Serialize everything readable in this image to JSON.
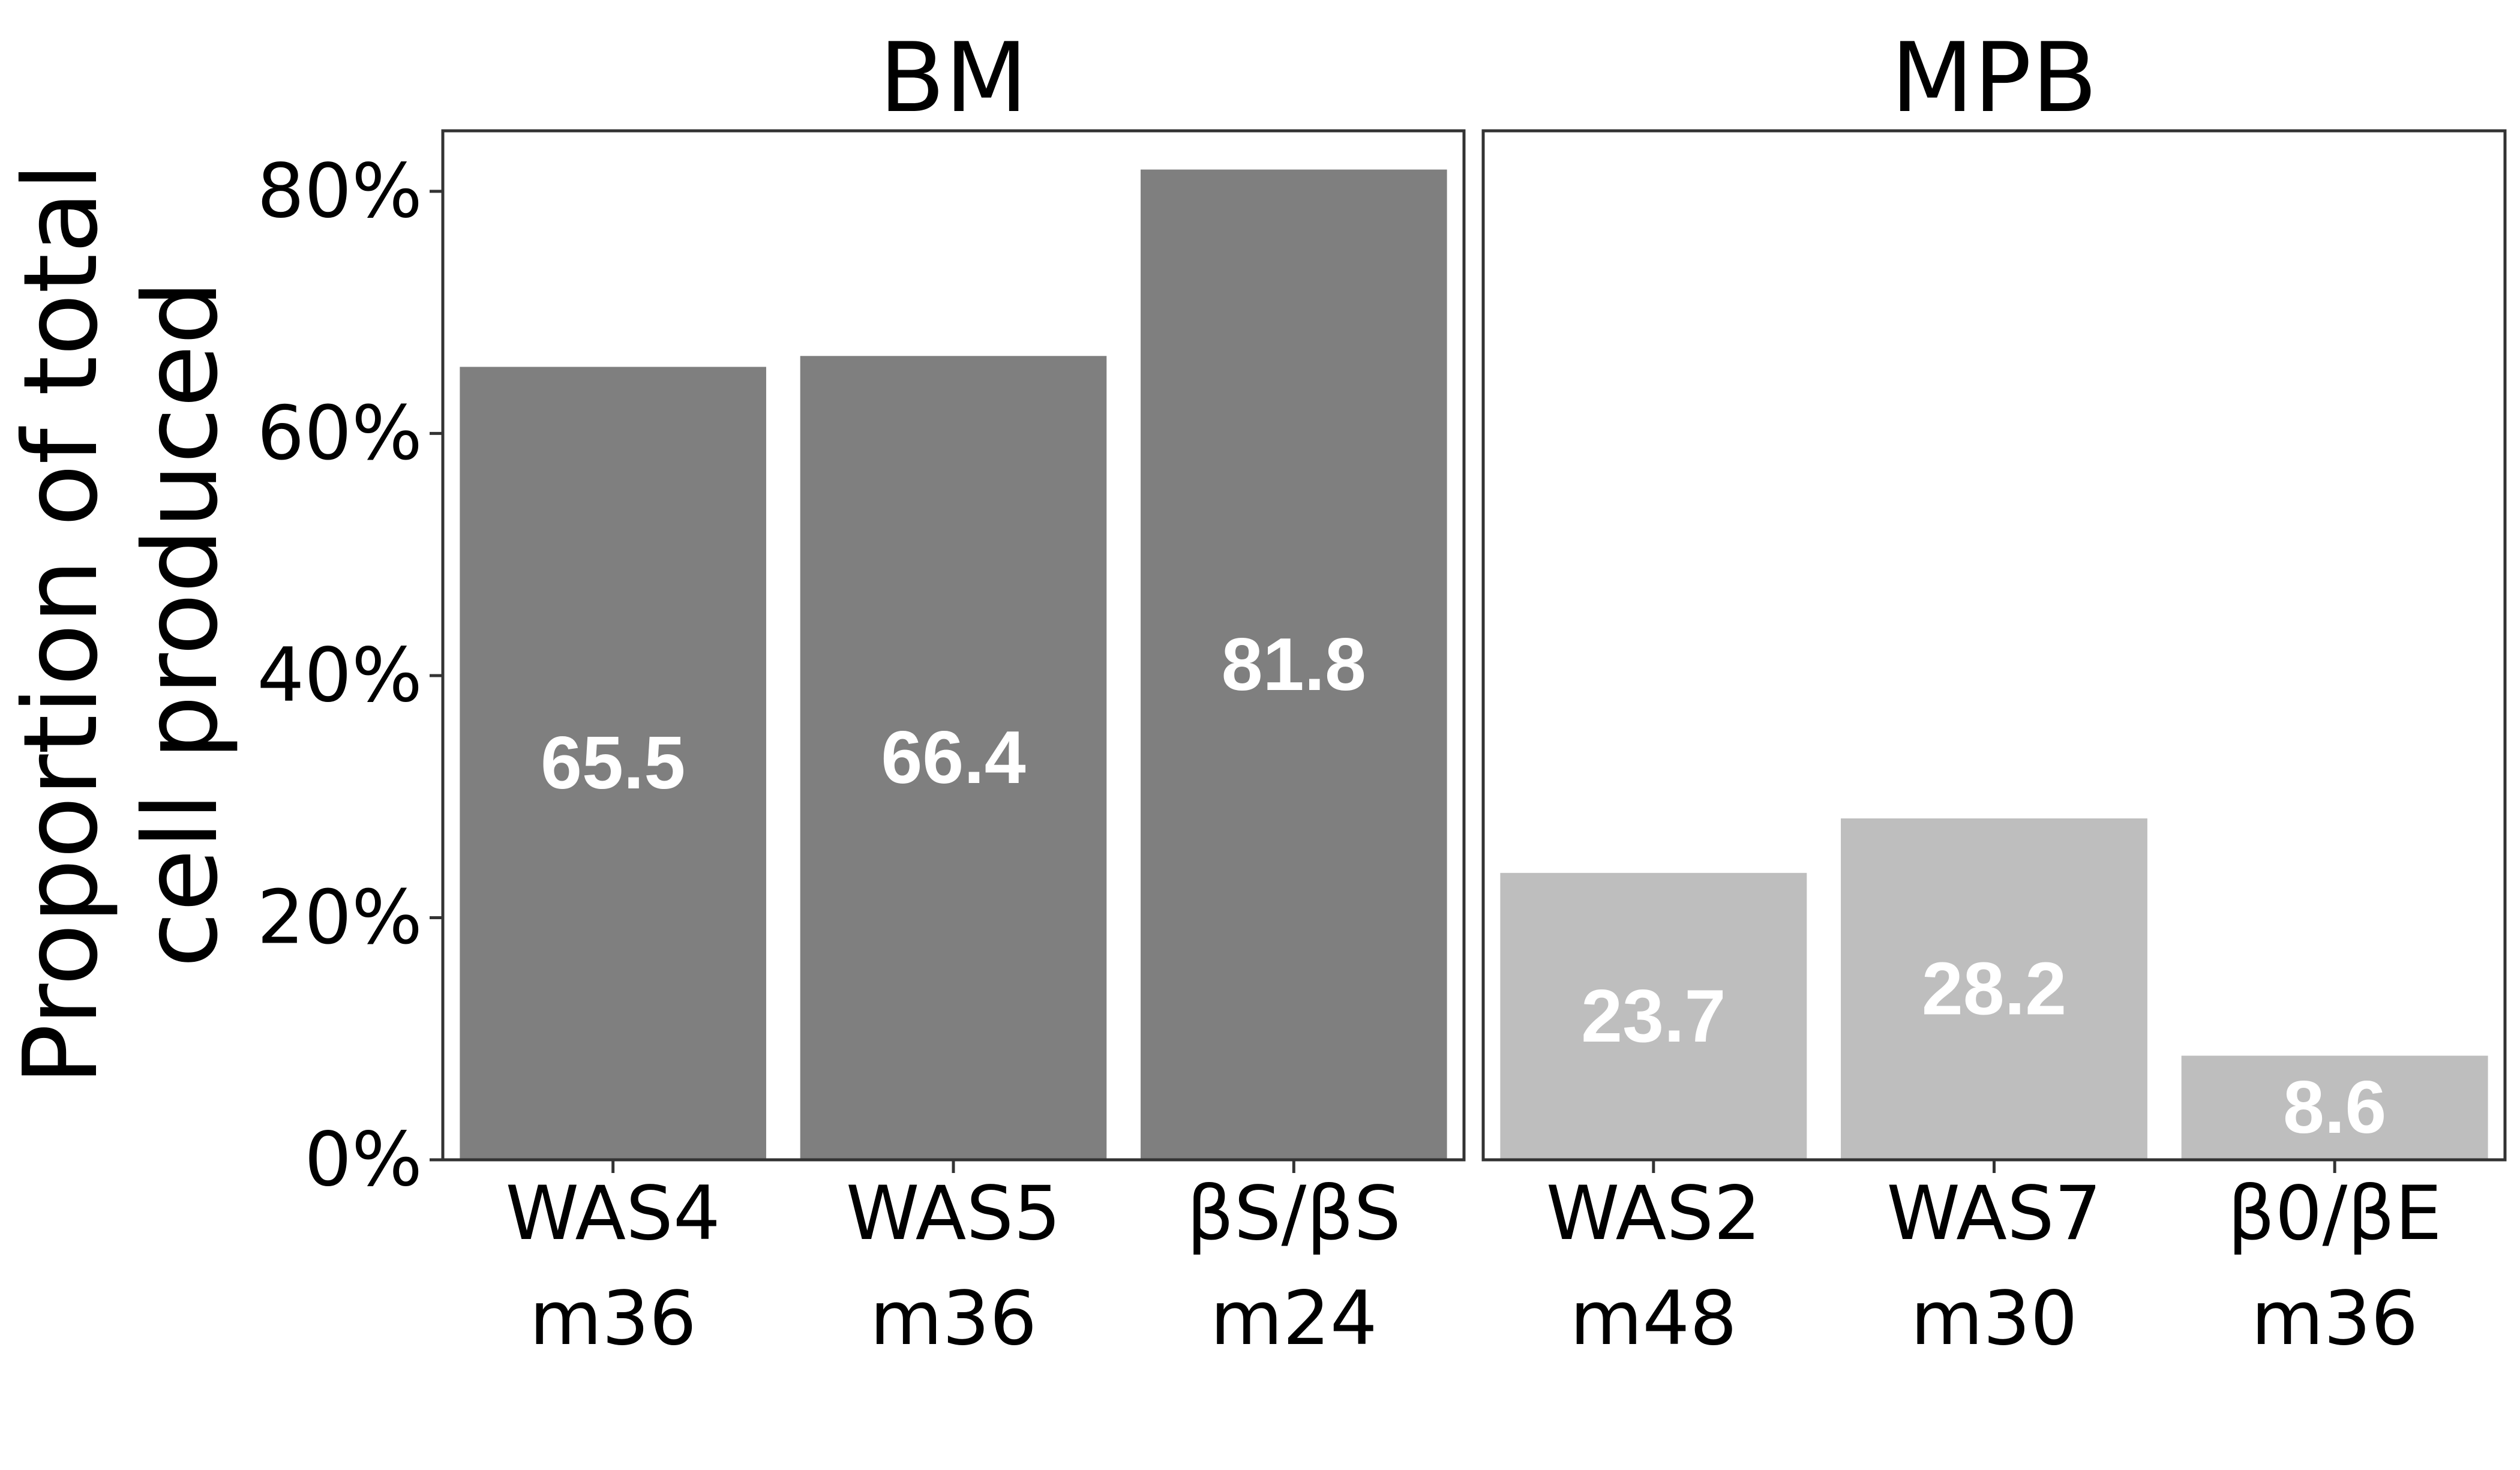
{
  "chart_data": {
    "type": "bar",
    "ylabel": [
      "Proportion of total",
      "cell produced"
    ],
    "ylim": [
      0,
      85
    ],
    "yticks": [
      "0%",
      "20%",
      "40%",
      "60%",
      "80%"
    ],
    "ytick_values": [
      0,
      20,
      40,
      60,
      80
    ],
    "grid": false,
    "panels": [
      {
        "title": "BM",
        "color": "#7f7f7f",
        "categories": [
          [
            "WAS4",
            "m36"
          ],
          [
            "WAS5",
            "m36"
          ],
          [
            "βS/βS",
            "m24"
          ]
        ],
        "values": [
          65.5,
          66.4,
          81.8
        ],
        "labels": [
          "65.5",
          "66.4",
          "81.8"
        ]
      },
      {
        "title": "MPB",
        "color": "#bebebe",
        "categories": [
          [
            "WAS2",
            "m48"
          ],
          [
            "WAS7",
            "m30"
          ],
          [
            "β0/βE",
            "m36"
          ]
        ],
        "values": [
          23.7,
          28.2,
          8.6
        ],
        "labels": [
          "23.7",
          "28.2",
          "8.6"
        ]
      }
    ]
  }
}
